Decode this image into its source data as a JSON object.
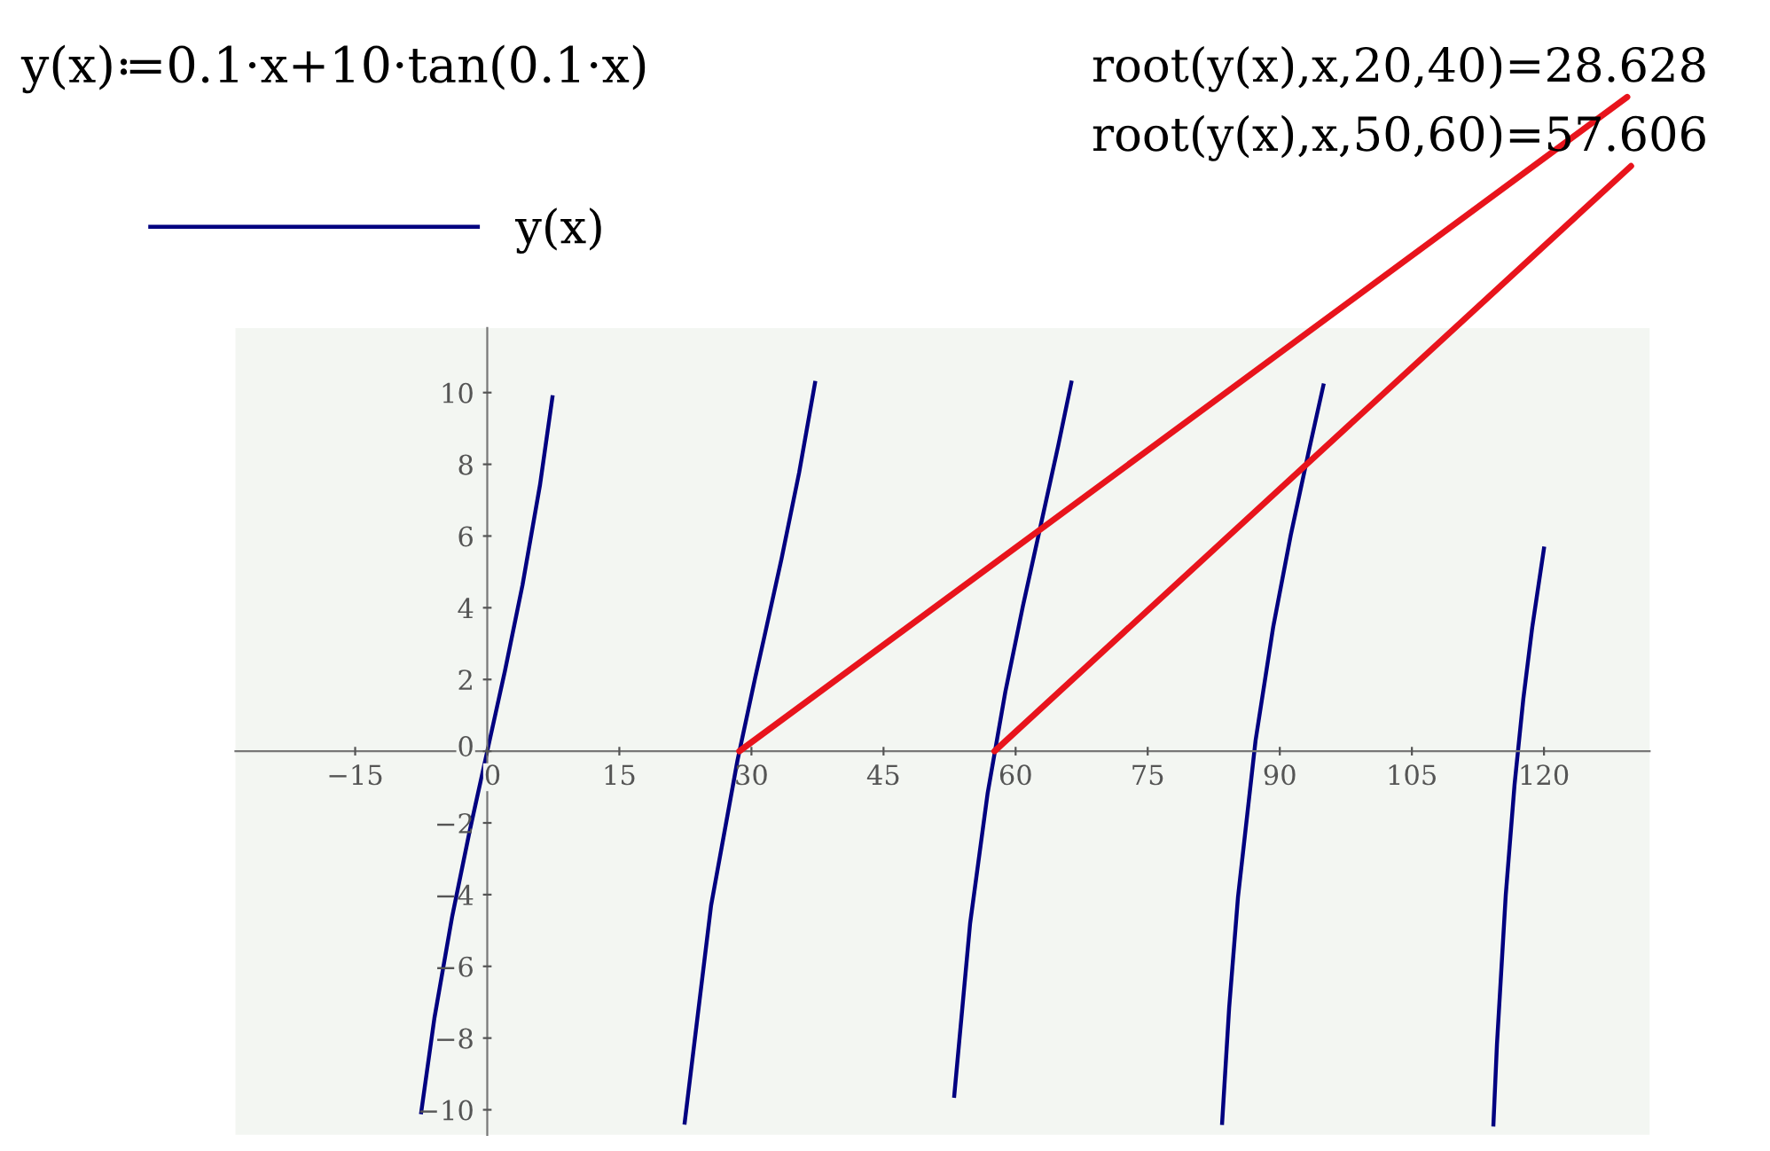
{
  "chart_data": {
    "type": "line",
    "title": "y(x)≔0.1·x+10·tan(0.1·x)",
    "annotations": [
      {
        "text": "root(y(x),x,20,40)=28.628",
        "x": 28.628,
        "y": 0
      },
      {
        "text": "root(y(x),x,50,60)=57.606",
        "x": 57.606,
        "y": 0
      }
    ],
    "series": [
      {
        "name": "y(x)",
        "color": "#000080",
        "x": [
          -7.5,
          -6,
          -4,
          -2,
          0,
          2,
          4,
          6,
          7.4,
          7.45,
          22.42,
          25.42,
          28.42,
          30.42,
          31.42,
          33.42,
          35.42,
          37.22,
          45,
          53.03,
          54.83,
          56.83,
          58.83,
          60.83,
          62.83,
          64.83,
          66.33,
          75,
          83.45,
          84.25,
          85.25,
          87.25,
          89.25,
          91.25,
          93.25,
          94.95,
          105,
          114.26,
          114.66,
          115.66,
          116.66,
          117.66,
          118.66,
          120.0
        ],
        "values": [
          -10.07,
          -7.44,
          -4.63,
          -2.23,
          0,
          2.23,
          4.63,
          7.44,
          9.87,
          null,
          -10.36,
          -4.3,
          -0.25,
          2.04,
          3.14,
          5.37,
          7.77,
          10.27,
          null,
          -9.61,
          -4.81,
          -1.16,
          1.65,
          4.05,
          6.28,
          8.51,
          10.28,
          null,
          -10.37,
          -7.15,
          -4.08,
          0.3,
          3.46,
          6.03,
          8.32,
          10.2,
          null,
          -10.41,
          -8.18,
          -4.01,
          -0.93,
          1.47,
          3.44,
          5.65
        ]
      }
    ],
    "xlim": [
      -28.6,
      132
    ],
    "ylim": [
      -10.7,
      11.8
    ],
    "xticks": [
      {
        "value": -15,
        "label": "−15"
      },
      0,
      15,
      30,
      45,
      60,
      75,
      90,
      105,
      120
    ],
    "yticks": [
      {
        "value": -10,
        "label": "−10"
      },
      {
        "value": -8,
        "label": "−8"
      },
      {
        "value": -6,
        "label": "−6"
      },
      {
        "value": -4,
        "label": "−4"
      },
      {
        "value": -2,
        "label": "−2"
      },
      0,
      2,
      4,
      6,
      8,
      10
    ],
    "grid": false,
    "legend": "top left",
    "marker": "none",
    "line_style": "solid"
  }
}
